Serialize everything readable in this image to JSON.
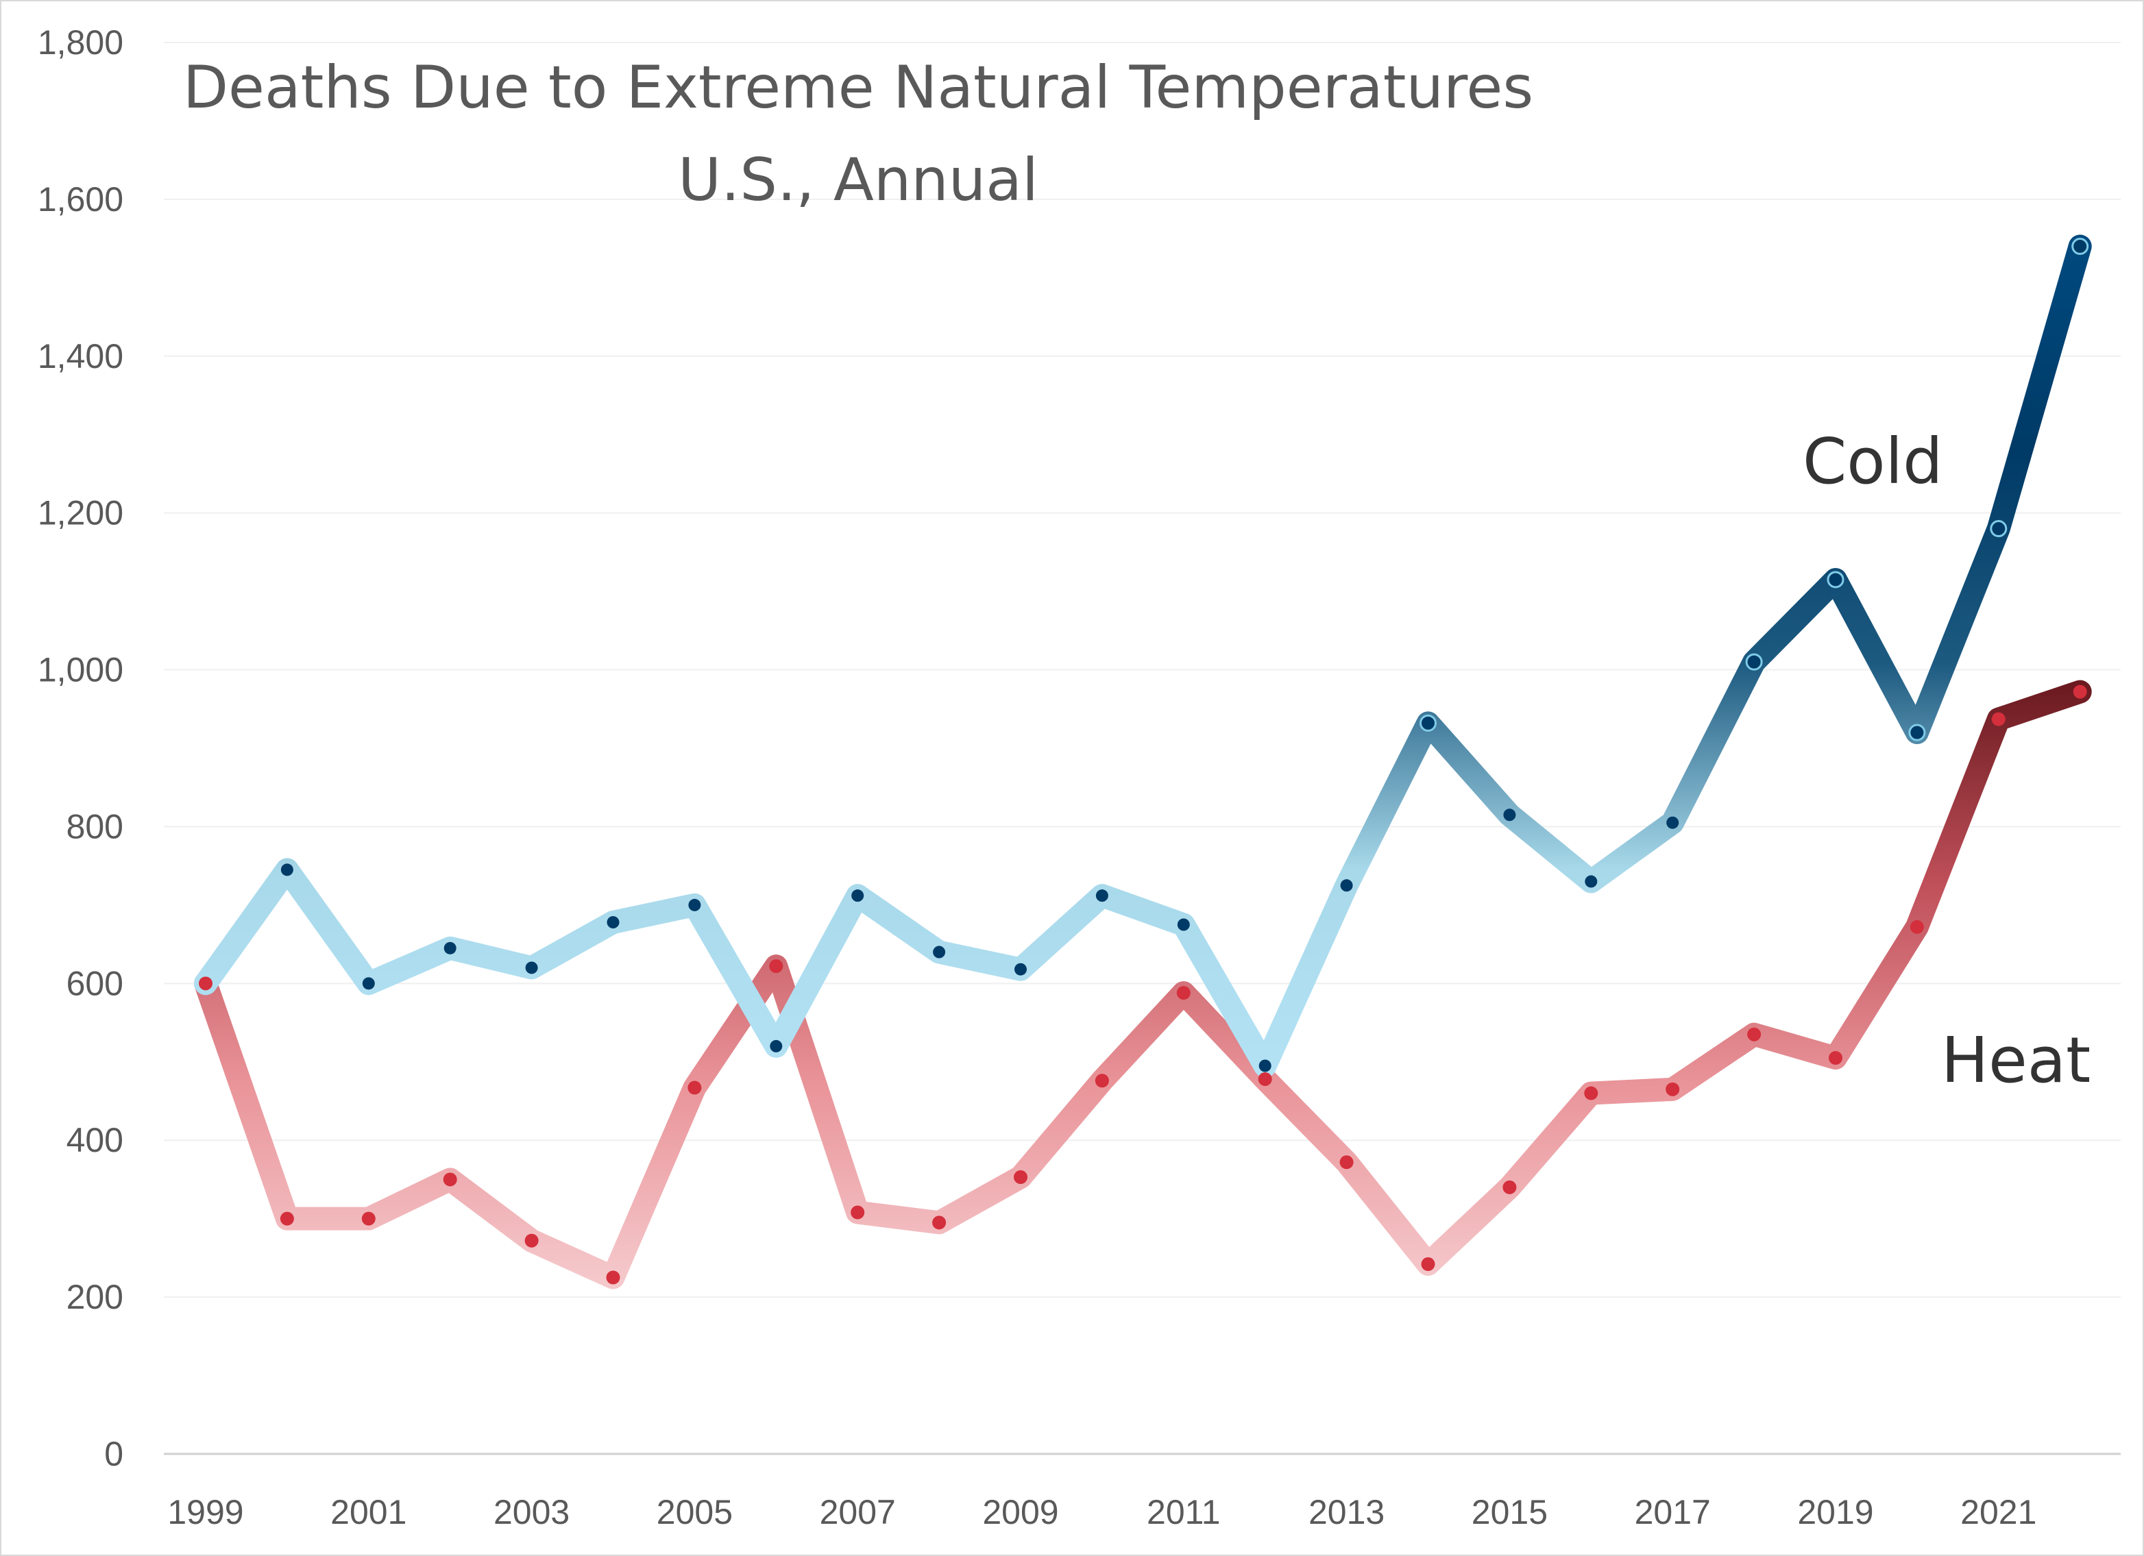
{
  "chart_data": {
    "type": "line",
    "title": "Deaths Due to Extreme Natural Temperatures",
    "subtitle": "U.S., Annual",
    "xlabel": "",
    "ylabel": "",
    "x": [
      1999,
      2000,
      2001,
      2002,
      2003,
      2004,
      2005,
      2006,
      2007,
      2008,
      2009,
      2010,
      2011,
      2012,
      2013,
      2014,
      2015,
      2016,
      2017,
      2018,
      2019,
      2020,
      2021,
      2022
    ],
    "x_tick_labels": [
      "1999",
      "2001",
      "2003",
      "2005",
      "2007",
      "2009",
      "2011",
      "2013",
      "2015",
      "2017",
      "2019",
      "2021"
    ],
    "ylim": [
      0,
      1800
    ],
    "y_tick_labels": [
      "0",
      "200",
      "400",
      "600",
      "800",
      "1,000",
      "1,200",
      "1,400",
      "1,600",
      "1,800"
    ],
    "grid": "horizontal",
    "series": [
      {
        "name": "Cold",
        "color": "#004a7c",
        "gradient": [
          "#b3e2f5",
          "#a8d9ea",
          "#1d5a80",
          "#003a66",
          "#00497e"
        ],
        "marker_color": "#003a66",
        "values": [
          600,
          745,
          600,
          645,
          620,
          678,
          700,
          520,
          712,
          640,
          618,
          712,
          675,
          495,
          725,
          932,
          815,
          730,
          805,
          1010,
          1115,
          920,
          1180,
          1540
        ]
      },
      {
        "name": "Heat",
        "color": "#c0505a",
        "gradient": [
          "#f5c9cc",
          "#e99499",
          "#c0505a",
          "#6b1a20"
        ],
        "marker_color": "#d42f3c",
        "values": [
          600,
          300,
          300,
          350,
          272,
          225,
          467,
          622,
          308,
          295,
          353,
          476,
          588,
          478,
          372,
          242,
          340,
          460,
          465,
          535,
          505,
          672,
          937,
          972
        ]
      }
    ]
  }
}
